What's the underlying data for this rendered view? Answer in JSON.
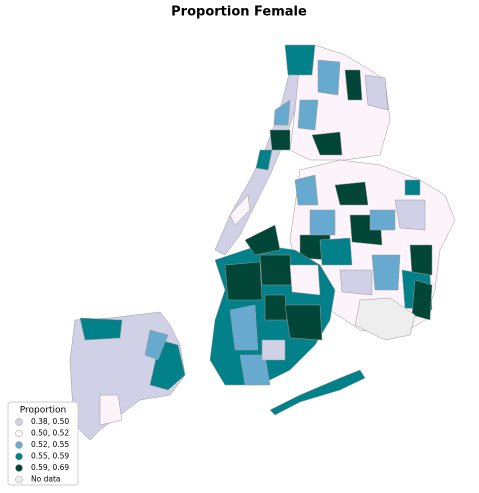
{
  "title": "Proportion Female",
  "legend": {
    "title": "Proportion",
    "entries": [
      {
        "label": "0.38, 0.50",
        "color": "#d0d1e6"
      },
      {
        "label": "0.50, 0.52",
        "color": "#fdf3fa"
      },
      {
        "label": "0.52, 0.55",
        "color": "#67a9cf"
      },
      {
        "label": "0.55, 0.59",
        "color": "#02818a"
      },
      {
        "label": "0.59, 0.69",
        "color": "#014636"
      },
      {
        "label": "No data",
        "color": "#eeeeee"
      }
    ]
  }
}
